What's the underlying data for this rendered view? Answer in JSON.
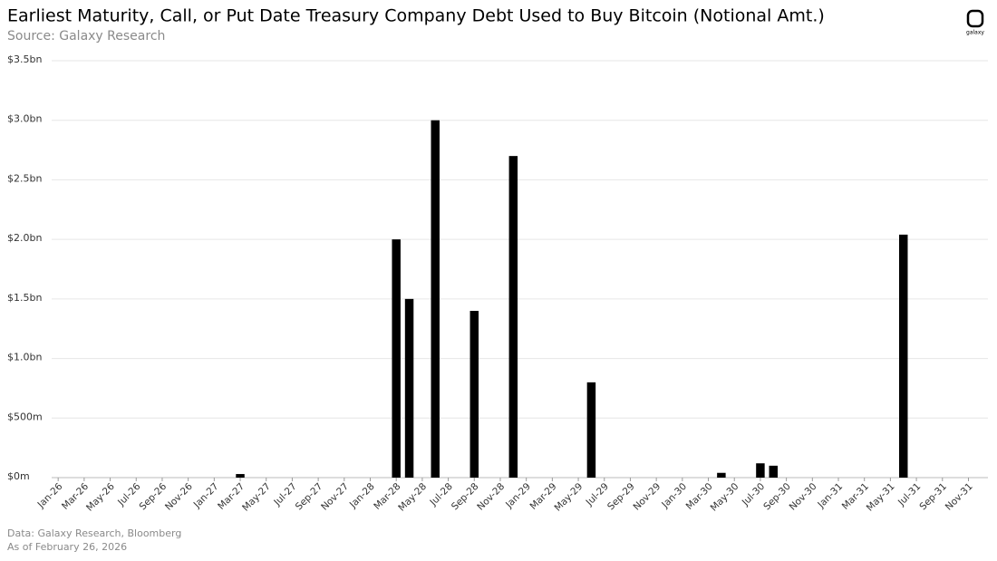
{
  "chart_data": {
    "type": "bar",
    "title": "Earliest Maturity, Call, or Put Date Treasury Company Debt Used to Buy Bitcoin (Notional Amt.)",
    "subtitle": "Source: Galaxy Research",
    "notes": [
      "Data: Galaxy Research, Bloomberg",
      "As of February 26, 2026"
    ],
    "logo": "galaxy",
    "color": "#000000",
    "grid": true,
    "categories": [
      "Jan-26",
      null,
      "Mar-26",
      null,
      "May-26",
      null,
      "Jul-26",
      null,
      "Sep-26",
      null,
      "Nov-26",
      null,
      "Jan-27",
      null,
      "Mar-27",
      null,
      "May-27",
      null,
      "Jul-27",
      null,
      "Sep-27",
      null,
      "Nov-27",
      null,
      "Jan-28",
      null,
      "Mar-28",
      null,
      "May-28",
      null,
      "Jul-28",
      null,
      "Sep-28",
      null,
      "Nov-28",
      null,
      "Jan-29",
      null,
      "Mar-29",
      null,
      "May-29",
      null,
      "Jul-29",
      null,
      "Sep-29",
      null,
      "Nov-29",
      null,
      "Jan-30",
      null,
      "Mar-30",
      null,
      "May-30",
      null,
      "Jul-30",
      null,
      "Sep-30",
      null,
      "Nov-30",
      null,
      "Jan-31",
      null,
      "Mar-31",
      null,
      "May-31",
      null,
      "Jul-31",
      null,
      "Sep-31",
      null,
      "Nov-31",
      null
    ],
    "values": [
      0,
      0,
      0,
      0,
      0,
      0,
      0,
      0,
      0,
      0,
      0,
      0,
      0,
      0,
      0.03,
      0,
      0,
      0,
      0,
      0,
      0,
      0,
      0,
      0,
      0,
      0,
      2.0,
      1.5,
      0,
      3.0,
      0,
      0,
      1.4,
      0,
      0,
      2.7,
      0,
      0,
      0,
      0,
      0,
      0.8,
      0,
      0,
      0,
      0,
      0,
      0,
      0,
      0,
      0,
      0.04,
      0,
      0,
      0.12,
      0.1,
      0,
      0,
      0,
      0,
      0,
      0,
      0,
      0,
      0,
      2.04,
      0,
      0,
      0,
      0,
      0,
      0
    ],
    "ylim": [
      0,
      3.5
    ],
    "yticks": [
      {
        "value": 0,
        "label": "$0m"
      },
      {
        "value": 0.5,
        "label": "$500m"
      },
      {
        "value": 1,
        "label": "$1.0bn"
      },
      {
        "value": 1.5,
        "label": "$1.5bn"
      },
      {
        "value": 2,
        "label": "$2.0bn"
      },
      {
        "value": 2.5,
        "label": "$2.5bn"
      },
      {
        "value": 3,
        "label": "$3.0bn"
      },
      {
        "value": 3.5,
        "label": "$3.5bn"
      }
    ]
  }
}
